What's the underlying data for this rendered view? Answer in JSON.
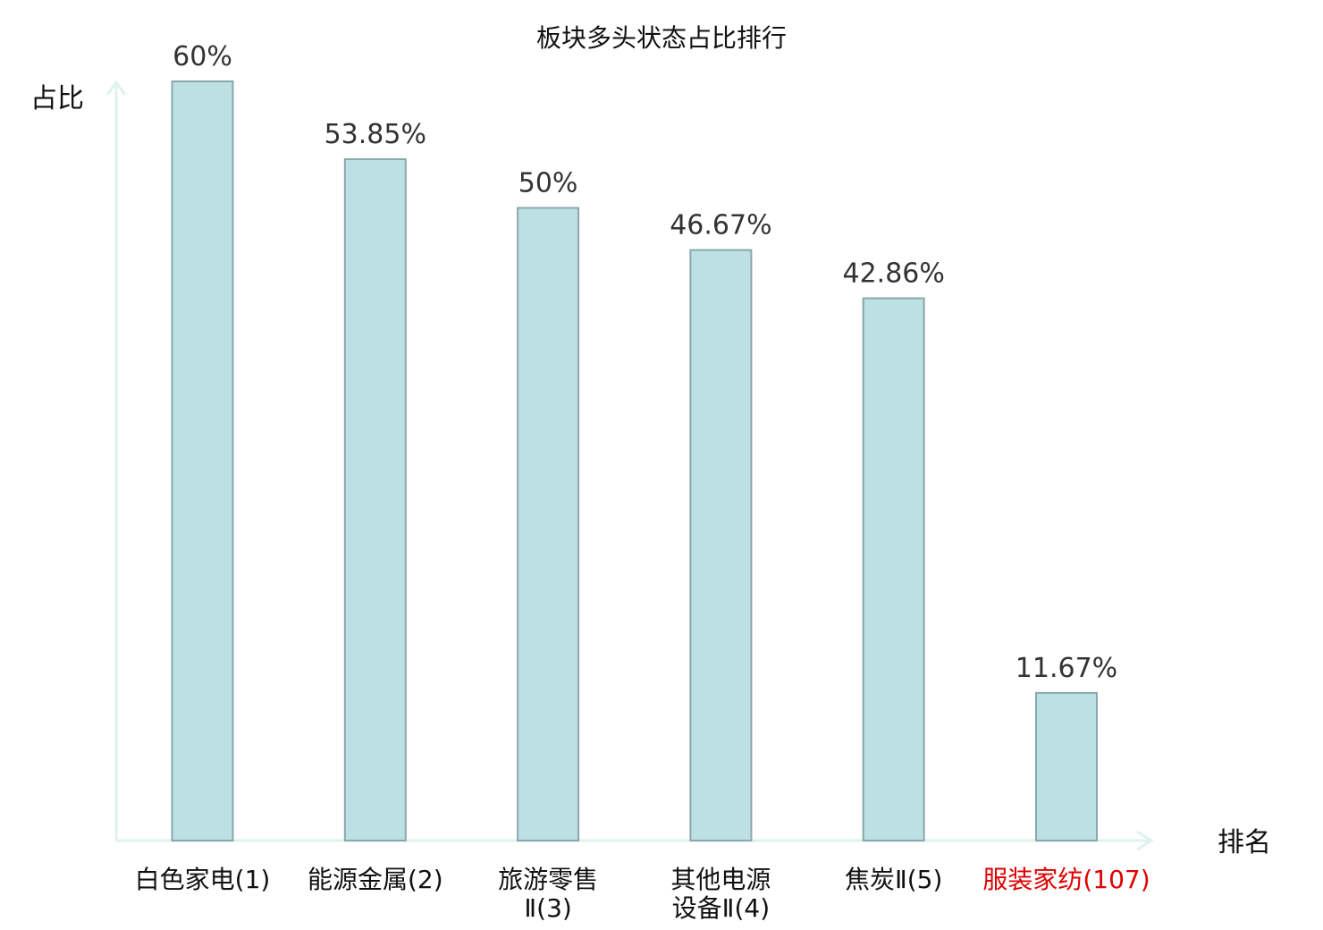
{
  "chart_data": {
    "type": "bar",
    "title": "板块多头状态占比排行",
    "ylabel": "占比",
    "xlabel": "排名",
    "categories": [
      {
        "name": "白色家电",
        "rank": "(1)",
        "lines": [
          "白色家电(1)"
        ]
      },
      {
        "name": "能源金属",
        "rank": "(2)",
        "lines": [
          "能源金属(2)"
        ]
      },
      {
        "name": "旅游零售Ⅱ",
        "rank": "(3)",
        "lines": [
          "旅游零售",
          "Ⅱ(3)"
        ]
      },
      {
        "name": "其他电源设备Ⅱ",
        "rank": "(4)",
        "lines": [
          "其他电源",
          "设备Ⅱ(4)"
        ]
      },
      {
        "name": "焦炭Ⅱ",
        "rank": "(5)",
        "lines": [
          "焦炭Ⅱ(5)"
        ]
      },
      {
        "name": "服装家纺",
        "rank": "(107)",
        "lines": [
          "服装家纺(107)"
        ]
      }
    ],
    "values": [
      60,
      53.85,
      50,
      46.67,
      42.86,
      11.67
    ],
    "value_labels": [
      "60%",
      "53.85%",
      "50%",
      "46.67%",
      "42.86%",
      "11.67%"
    ],
    "ylim": [
      0,
      60
    ],
    "grid": false,
    "legend": "none",
    "colors": {
      "bar_fill": "#bde0e2",
      "bar_stroke": "#8aa8ab",
      "axis": "#dff2ef",
      "highlight_label": "#e00000",
      "label": "#111111"
    },
    "highlight_index": 5
  }
}
